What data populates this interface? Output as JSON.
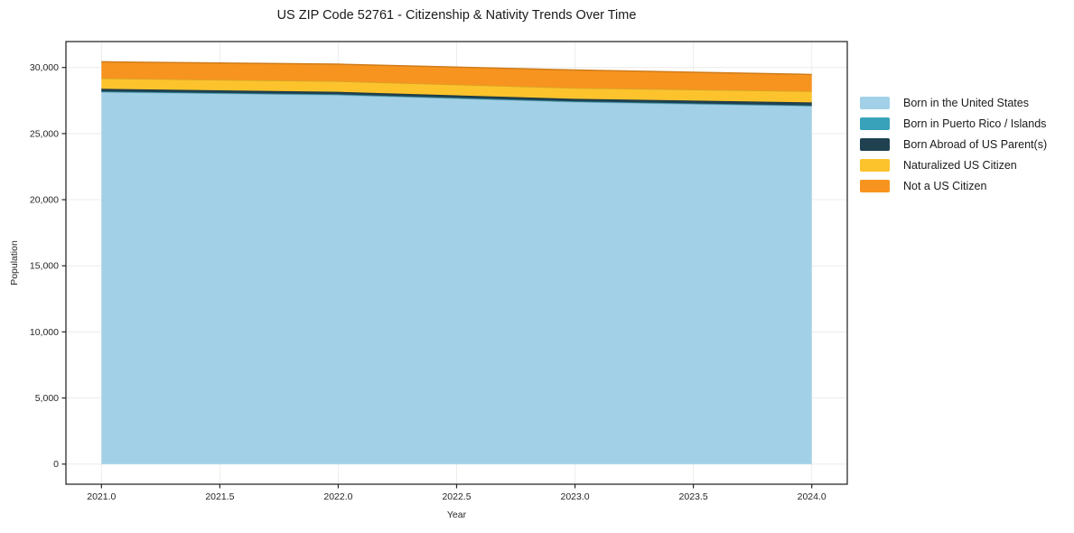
{
  "page": {
    "background": "#ffffff",
    "spine_color": "#1a1a1a",
    "tick_color": "#262626"
  },
  "chart_data": {
    "type": "area",
    "stacked": true,
    "title": "US ZIP Code 52761 - Citizenship & Nativity Trends Over Time",
    "xlabel": "Year",
    "ylabel": "Population",
    "x": [
      2021,
      2022,
      2023,
      2024
    ],
    "series": [
      {
        "name": "Born in the United States",
        "color": "#a2d1e7",
        "values": [
          28150,
          27930,
          27400,
          27090
        ]
      },
      {
        "name": "Born in Puerto Rico / Islands",
        "color": "#39a2bb",
        "values": [
          40,
          40,
          40,
          40
        ]
      },
      {
        "name": "Born Abroad of US Parent(s)",
        "color": "#1f4150",
        "values": [
          200,
          190,
          190,
          230
        ]
      },
      {
        "name": "Naturalized US Citizen",
        "color": "#fcc32d",
        "values": [
          790,
          800,
          820,
          840
        ]
      },
      {
        "name": "Not a US Citizen",
        "color": "#f7941f",
        "values": [
          1250,
          1290,
          1360,
          1270
        ]
      }
    ],
    "xlim": [
      2020.85,
      2024.15
    ],
    "ylim": [
      -1522,
      31962
    ],
    "x_ticks": {
      "values": [
        2021.0,
        2021.5,
        2022.0,
        2022.5,
        2023.0,
        2023.5,
        2024.0
      ],
      "labels": [
        "2021.0",
        "2021.5",
        "2022.0",
        "2022.5",
        "2023.0",
        "2023.5",
        "2024.0"
      ]
    },
    "y_ticks": {
      "values": [
        0,
        5000,
        10000,
        15000,
        20000,
        25000,
        30000
      ],
      "labels": [
        "0",
        "5,000",
        "10,000",
        "15,000",
        "20,000",
        "25,000",
        "30,000"
      ]
    },
    "grid": true,
    "grid_color": "#ececec",
    "legend_position": "right-outside"
  }
}
